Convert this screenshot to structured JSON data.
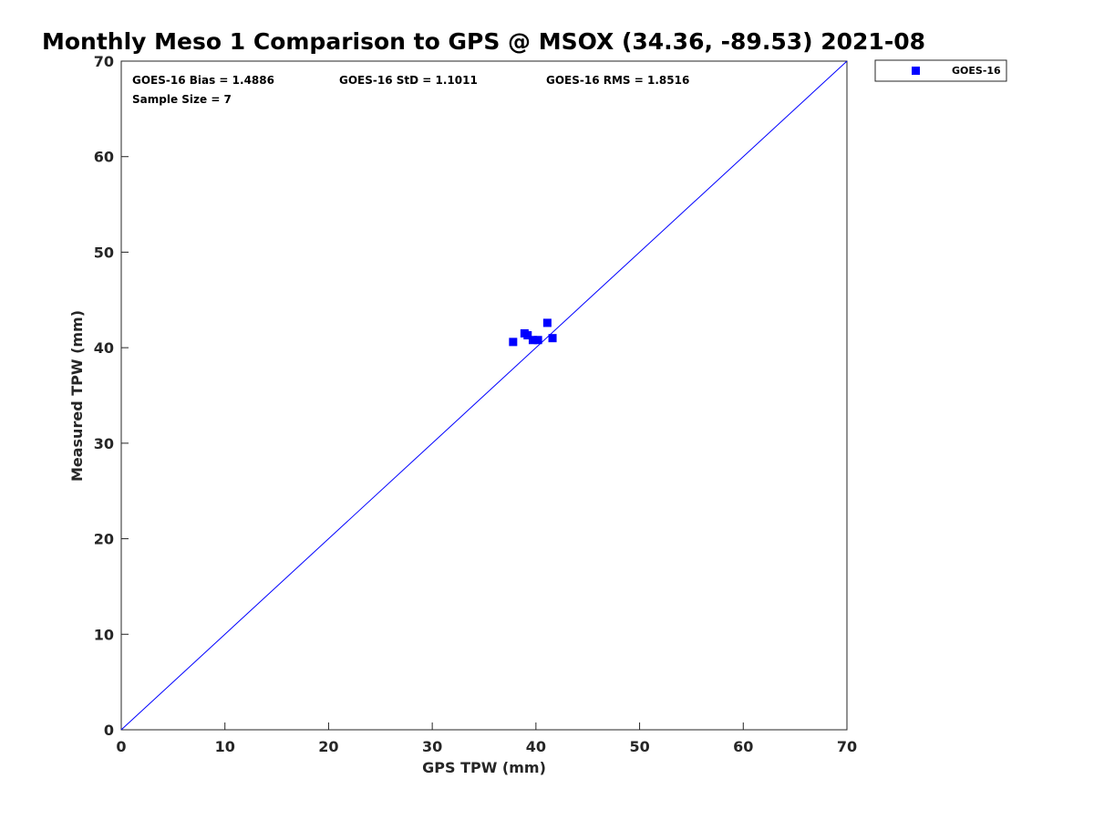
{
  "chart_data": {
    "type": "scatter",
    "title": "Monthly Meso 1 Comparison to GPS @ MSOX (34.36, -89.53) 2021-08",
    "xlabel": "GPS TPW (mm)",
    "ylabel": "Measured TPW (mm)",
    "xlim": [
      0,
      70
    ],
    "ylim": [
      0,
      70
    ],
    "xticks": [
      0,
      10,
      20,
      30,
      40,
      50,
      60,
      70
    ],
    "yticks": [
      0,
      10,
      20,
      30,
      40,
      50,
      60,
      70
    ],
    "grid": false,
    "legend_position": "outside-top-right",
    "reference_line": {
      "x": [
        0,
        70
      ],
      "y": [
        0,
        70
      ],
      "color": "#0000ff"
    },
    "series": [
      {
        "name": "GOES-16",
        "color": "#0000ff",
        "marker": "square",
        "points": [
          {
            "x": 37.8,
            "y": 40.6
          },
          {
            "x": 38.9,
            "y": 41.5
          },
          {
            "x": 39.2,
            "y": 41.3
          },
          {
            "x": 39.7,
            "y": 40.8
          },
          {
            "x": 40.2,
            "y": 40.8
          },
          {
            "x": 41.1,
            "y": 42.6
          },
          {
            "x": 41.6,
            "y": 41.0
          }
        ]
      }
    ],
    "annotations": {
      "bias": "GOES-16 Bias = 1.4886",
      "std": "GOES-16 StD = 1.1011",
      "rms": "GOES-16 RMS = 1.8516",
      "sample_size": "Sample Size = 7"
    }
  }
}
